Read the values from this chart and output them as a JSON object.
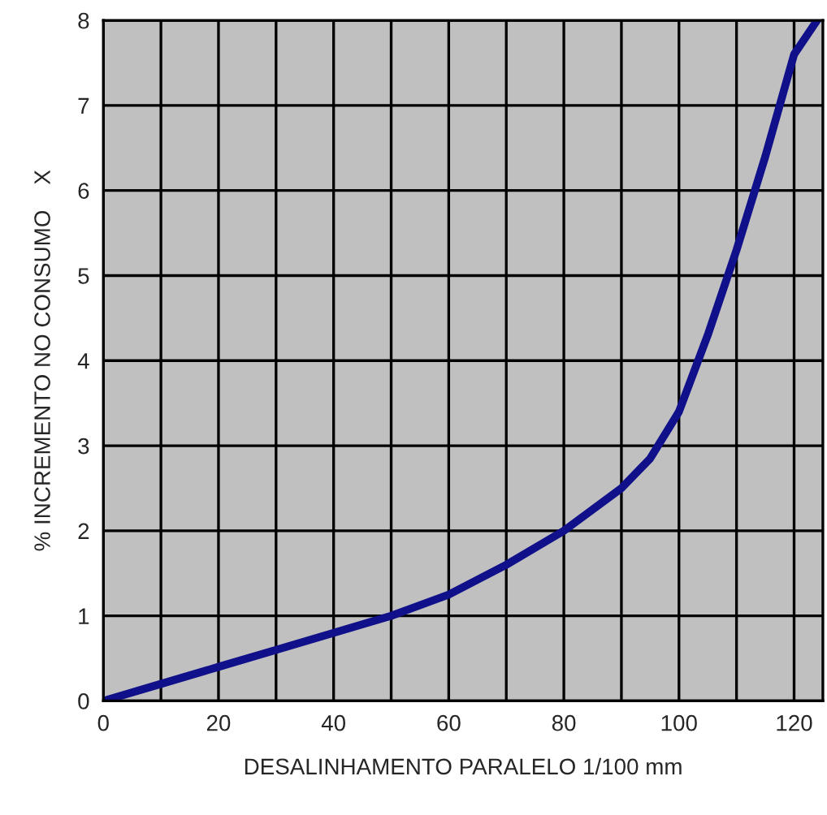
{
  "chart_data": {
    "type": "line",
    "xlabel": "DESALINHAMENTO PARALELO 1/100 mm",
    "ylabel": "% INCREMENTO NO CONSUMO    X",
    "series": [
      {
        "color": "#10108a",
        "x": [
          0,
          10,
          20,
          30,
          40,
          50,
          60,
          70,
          80,
          90,
          95,
          100,
          105,
          110,
          115,
          120,
          124
        ],
        "values": [
          0,
          0.2,
          0.4,
          0.6,
          0.8,
          1.0,
          1.25,
          1.6,
          2.0,
          2.5,
          2.85,
          3.4,
          4.3,
          5.3,
          6.4,
          7.6,
          8.0
        ]
      }
    ],
    "xlim": [
      0,
      125
    ],
    "ylim": [
      0,
      8
    ],
    "xticks": [
      0,
      {
        "value": 10,
        "label": null
      },
      20,
      {
        "value": 30,
        "label": null
      },
      40,
      {
        "value": 50,
        "label": null
      },
      60,
      {
        "value": 70,
        "label": null
      },
      80,
      {
        "value": 90,
        "label": null
      },
      100,
      {
        "value": 110,
        "label": null
      },
      120
    ],
    "yticks": [
      0,
      1,
      2,
      3,
      4,
      5,
      6,
      7,
      8
    ],
    "grid": true,
    "line_style": "solid"
  }
}
